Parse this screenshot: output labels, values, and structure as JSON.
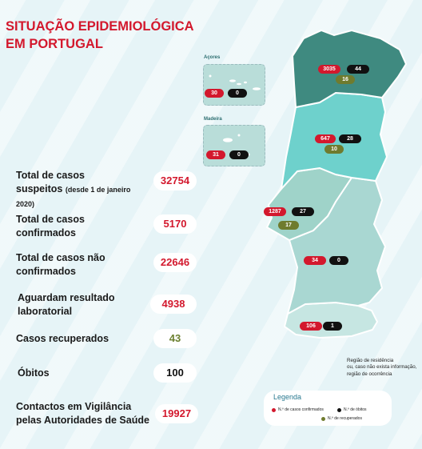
{
  "title": {
    "line1": "SITUAÇÃO EPIDEMIOLÓGICA",
    "line2": "EM PORTUGAL"
  },
  "stats": [
    {
      "line1": "Total de casos",
      "line2": "suspeitos",
      "line2_small": "(desde 1 de janeiro",
      "line3": "2020)",
      "value": "32754"
    },
    {
      "line1": "Total de casos",
      "line2": "confirmados",
      "value": "5170"
    },
    {
      "line1": "Total de casos não",
      "line2": "confirmados",
      "value": "22646"
    },
    {
      "line1": "Aguardam resultado",
      "line2": "laboratorial",
      "value": "4938"
    },
    {
      "line1": "Casos recuperados",
      "value": "43"
    },
    {
      "line1": "Óbitos",
      "value": "100"
    },
    {
      "line1": "Contactos em Vigilância",
      "line2": "pelas Autoridades de Saúde",
      "value": "19927"
    }
  ],
  "map": {
    "acores": {
      "label": "Açores",
      "confirmed": "30",
      "deaths": "0"
    },
    "madeira": {
      "label": "Madeira",
      "confirmed": "31",
      "deaths": "0"
    },
    "norte": {
      "confirmed": "3035",
      "deaths": "44",
      "recovered": "16"
    },
    "centro": {
      "confirmed": "647",
      "deaths": "28",
      "recovered": "10"
    },
    "lisboa": {
      "confirmed": "1287",
      "deaths": "27",
      "recovered": "17"
    },
    "alentejo": {
      "confirmed": "34",
      "deaths": "0"
    },
    "algarve": {
      "confirmed": "106",
      "deaths": "1"
    }
  },
  "note": {
    "line1": "Região de residência",
    "line2": "ou, caso não exista informação,",
    "line3": "região de ocorrência"
  },
  "legend": {
    "title": "Legenda",
    "confirmed": "N.º de casos confirmados",
    "deaths": "N.º de óbitos",
    "recovered": "N.º de recuperados"
  },
  "colors": {
    "accent": "#d3182d",
    "recovered": "#6b7f2f",
    "norte": "#3f8a80",
    "centro": "#6ed1cc",
    "south": "#a9d7d2",
    "background": "#e6f4f7"
  }
}
